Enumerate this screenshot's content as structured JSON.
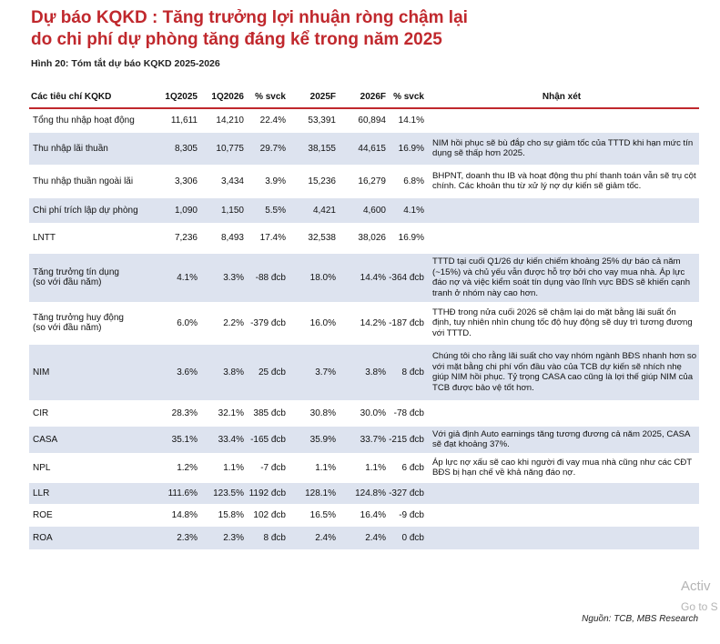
{
  "header": {
    "title_line1": "Dự báo KQKD : Tăng trưởng lợi nhuận ròng chậm lại",
    "title_line2": "do chi phí dự phòng tăng đáng kể trong năm 2025",
    "caption": "Hình 20: Tóm tắt dự báo KQKD 2025-2026"
  },
  "table": {
    "columns": [
      "Các tiêu chí KQKD",
      "1Q2025",
      "1Q2026",
      "% svck",
      "2025F",
      "2026F",
      "% svck",
      "Nhận xét"
    ],
    "rows": [
      {
        "label": "Tổng thu nhập hoạt động",
        "q2025": "11,611",
        "q2026": "14,210",
        "yoy_q": "22.4%",
        "f2025": "53,391",
        "f2026": "60,894",
        "yoy_f": "14.1%",
        "note": ""
      },
      {
        "label": "Thu nhập lãi thuần",
        "q2025": "8,305",
        "q2026": "10,775",
        "yoy_q": "29.7%",
        "f2025": "38,155",
        "f2026": "44,615",
        "yoy_f": "16.9%",
        "note": "NIM hồi phục sẽ bù đắp cho sự giảm tốc của TTTD khi hạn mức tín dụng sẽ thấp hơn 2025."
      },
      {
        "label": "Thu nhập thuần ngoài lãi",
        "q2025": "3,306",
        "q2026": "3,434",
        "yoy_q": "3.9%",
        "f2025": "15,236",
        "f2026": "16,279",
        "yoy_f": "6.8%",
        "note": "BHPNT, doanh thu IB và hoạt động thu phí thanh toán vẫn sẽ trụ cột chính. Các khoản thu từ xử lý nợ dự kiến sẽ giảm tốc."
      },
      {
        "label": "Chi phí trích lập dự phòng",
        "q2025": "1,090",
        "q2026": "1,150",
        "yoy_q": "5.5%",
        "f2025": "4,421",
        "f2026": "4,600",
        "yoy_f": "4.1%",
        "note": ""
      },
      {
        "label": "LNTT",
        "q2025": "7,236",
        "q2026": "8,493",
        "yoy_q": "17.4%",
        "f2025": "32,538",
        "f2026": "38,026",
        "yoy_f": "16.9%",
        "note": ""
      },
      {
        "label": "Tăng trưởng tín dụng",
        "label2": "(so với đầu năm)",
        "q2025": "4.1%",
        "q2026": "3.3%",
        "yoy_q": "-88 đcb",
        "f2025": "18.0%",
        "f2026": "14.4%",
        "yoy_f": "-364 đcb",
        "note": "TTTD tại cuối Q1/26 dự kiến chiếm khoảng 25% dự báo cả năm (~15%) và chủ yếu vẫn được hỗ trợ bởi cho vay mua nhà. Áp lực đáo nợ và việc kiểm soát tín dụng vào lĩnh vực BĐS sẽ khiến cạnh tranh ở nhóm này cao hơn."
      },
      {
        "label": "Tăng trưởng huy động",
        "label2": "(so với đầu năm)",
        "q2025": "6.0%",
        "q2026": "2.2%",
        "yoy_q": "-379 đcb",
        "f2025": "16.0%",
        "f2026": "14.2%",
        "yoy_f": "-187 đcb",
        "note": "TTHĐ trong nửa cuối 2026 sẽ chậm lại do mặt bằng lãi suất ổn định, tuy nhiên nhìn chung tốc độ huy động sẽ duy trì tương đương với TTTD."
      },
      {
        "label": "NIM",
        "q2025": "3.6%",
        "q2026": "3.8%",
        "yoy_q": "25 đcb",
        "f2025": "3.7%",
        "f2026": "3.8%",
        "yoy_f": "8 đcb",
        "note": "Chúng tôi cho rằng lãi suất cho vay nhóm ngành BĐS nhanh hơn so với mặt bằng chi phí vốn đầu vào của TCB dự kiến sẽ nhích nhẹ giúp NIM hồi phục. Tỷ trọng CASA cao cũng là lợi thế giúp NIM của TCB được bảo vệ tốt hơn."
      },
      {
        "label": "CIR",
        "q2025": "28.3%",
        "q2026": "32.1%",
        "yoy_q": "385 đcb",
        "f2025": "30.8%",
        "f2026": "30.0%",
        "yoy_f": "-78 đcb",
        "note": ""
      },
      {
        "label": "CASA",
        "q2025": "35.1%",
        "q2026": "33.4%",
        "yoy_q": "-165 đcb",
        "f2025": "35.9%",
        "f2026": "33.7%",
        "yoy_f": "-215 đcb",
        "note": "Với giả định Auto earnings tăng tương đương cả năm 2025, CASA sẽ đạt khoảng 37%."
      },
      {
        "label": "NPL",
        "q2025": "1.2%",
        "q2026": "1.1%",
        "yoy_q": "-7 đcb",
        "f2025": "1.1%",
        "f2026": "1.1%",
        "yoy_f": "6 đcb",
        "note": "Áp lực nợ xấu sẽ cao khi người đi vay mua nhà cũng như các CĐT BĐS bị hạn chế về khả năng đáo nợ."
      },
      {
        "label": "LLR",
        "q2025": "111.6%",
        "q2026": "123.5%",
        "yoy_q": "1192 đcb",
        "f2025": "128.1%",
        "f2026": "124.8%",
        "yoy_f": "-327 đcb",
        "note": ""
      },
      {
        "label": "ROE",
        "q2025": "14.8%",
        "q2026": "15.8%",
        "yoy_q": "102 đcb",
        "f2025": "16.5%",
        "f2026": "16.4%",
        "yoy_f": "-9 đcb",
        "note": ""
      },
      {
        "label": "ROA",
        "q2025": "2.3%",
        "q2026": "2.3%",
        "yoy_q": "8 đcb",
        "f2025": "2.4%",
        "f2026": "2.4%",
        "yoy_f": "0 đcb",
        "note": ""
      }
    ]
  },
  "source": "Nguồn: TCB, MBS Research",
  "watermark": {
    "line1": "Activ",
    "line2": "Go to S"
  },
  "colors": {
    "accent": "#c0282d",
    "row_shade": "#dde3ef"
  }
}
